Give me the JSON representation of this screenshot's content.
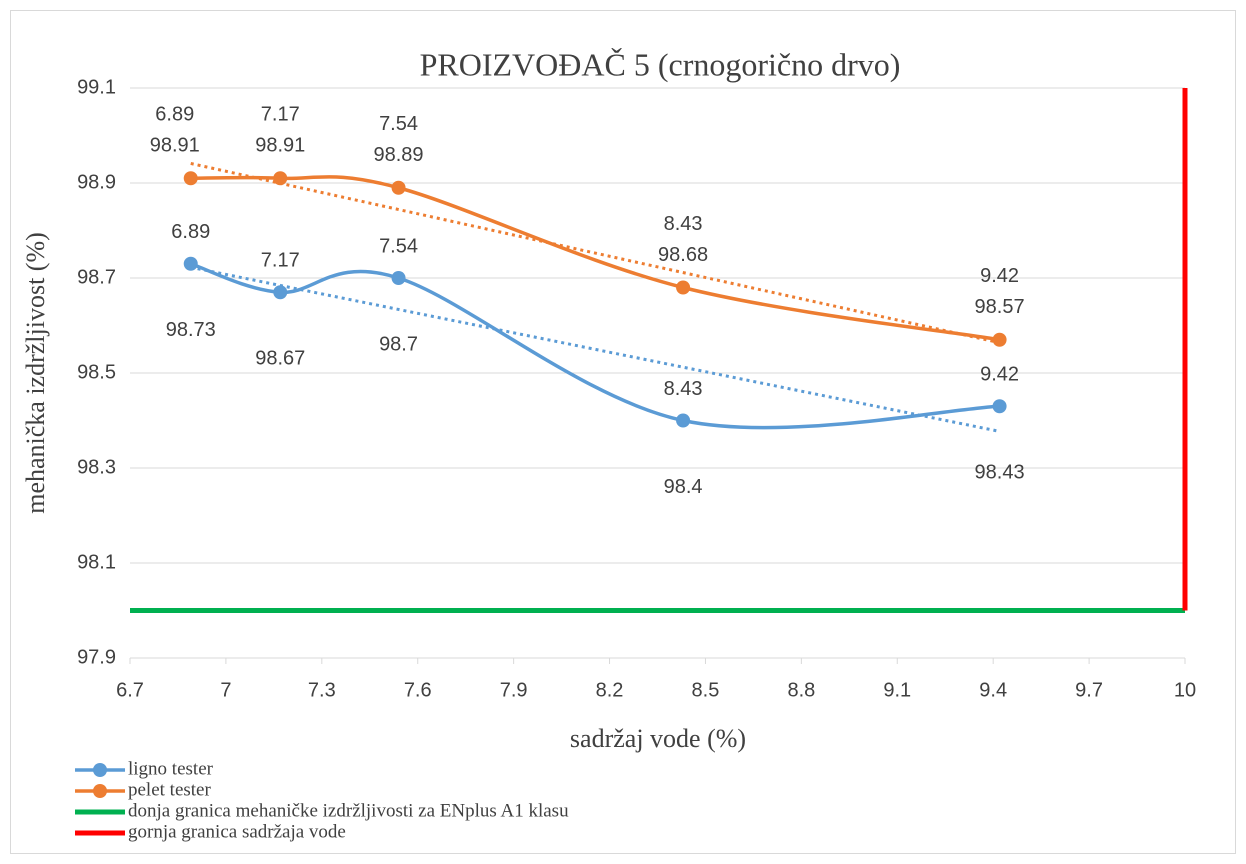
{
  "chart_data": {
    "type": "line",
    "title": "PROIZVOĐAČ 5 (crnogorično drvo)",
    "xlabel": "sadržaj vode (%)",
    "ylabel": "mehanička izdržljivost (%)",
    "xlim": [
      6.7,
      10
    ],
    "xticks": [
      6.7,
      7,
      7.3,
      7.6,
      7.9,
      8.2,
      8.5,
      8.8,
      9.1,
      9.4,
      9.7,
      10
    ],
    "ylim": [
      97.9,
      99.1
    ],
    "yticks": [
      97.9,
      98.1,
      98.3,
      98.5,
      98.7,
      98.9,
      99.1
    ],
    "grid": true,
    "legend": "bottom",
    "series": [
      {
        "name": "ligno tester",
        "color": "#5b9bd5",
        "smooth": true,
        "markers": true,
        "trendline": "linear",
        "data_labels": true,
        "x": [
          6.89,
          7.17,
          7.54,
          8.43,
          9.42
        ],
        "values": [
          98.73,
          98.67,
          98.7,
          98.4,
          98.43
        ]
      },
      {
        "name": "pelet tester",
        "color": "#ed7d31",
        "smooth": true,
        "markers": true,
        "trendline": "linear",
        "data_labels": true,
        "x": [
          6.89,
          7.17,
          7.54,
          8.43,
          9.42
        ],
        "values": [
          98.91,
          98.91,
          98.89,
          98.68,
          98.57
        ]
      },
      {
        "name": "donja granica mehaničke izdržljivosti za ENplus A1 klasu",
        "color": "#00b050",
        "x": [
          6.7,
          10
        ],
        "values": [
          98,
          98
        ]
      },
      {
        "name": "gornja granica sadržaja vode",
        "color": "#ff0000",
        "x": [
          10,
          10
        ],
        "values": [
          98,
          99.1
        ]
      }
    ]
  }
}
